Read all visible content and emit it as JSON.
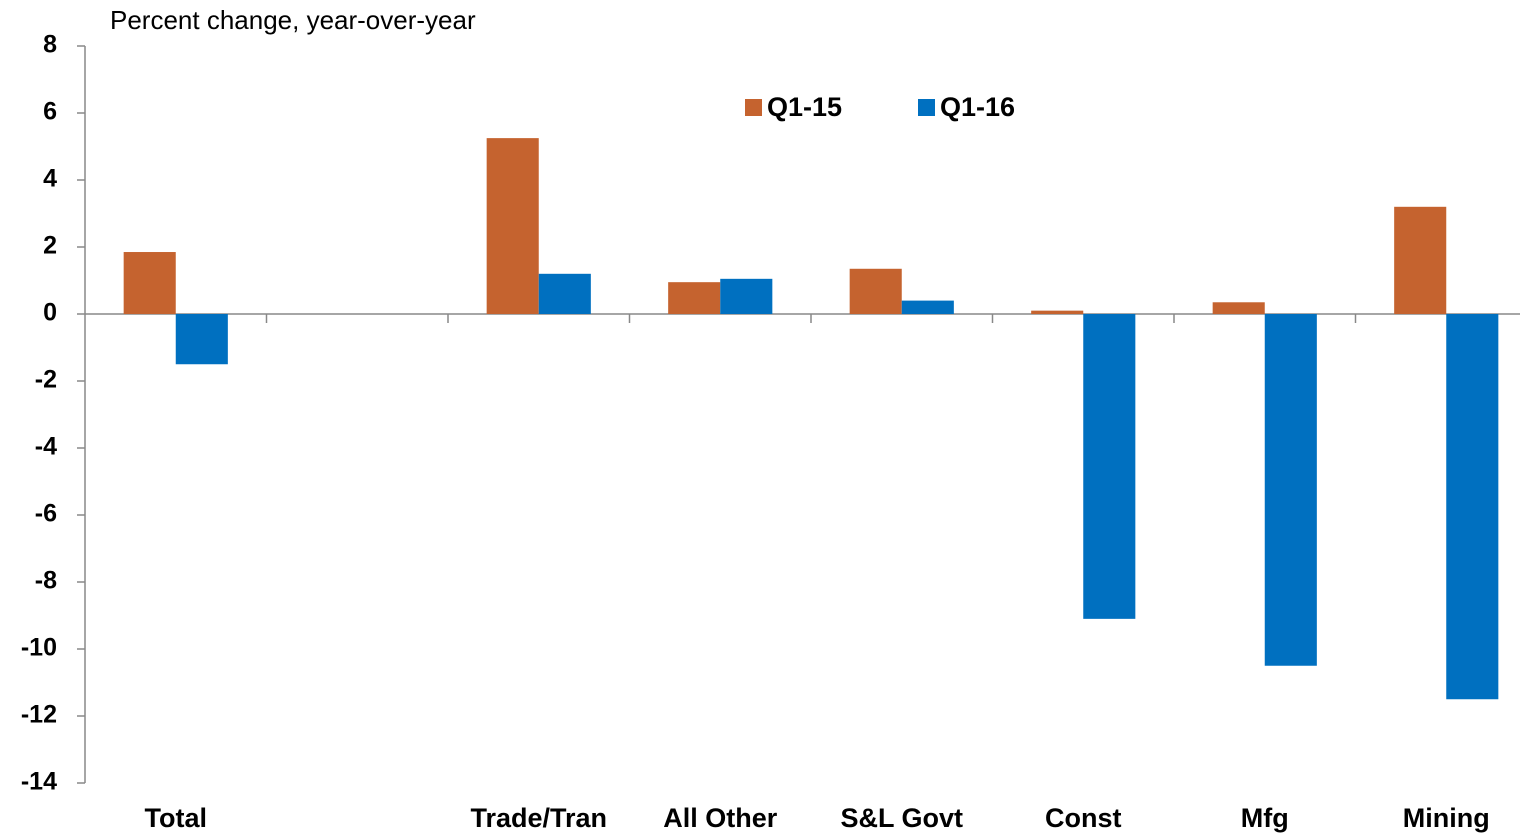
{
  "chart_data": {
    "type": "bar",
    "y_axis_label": "Percent change, year-over-year",
    "categories": [
      "Total",
      null,
      "Trade/Tran",
      "All Other",
      "S&L Govt",
      "Const",
      "Mfg",
      "Mining"
    ],
    "series": [
      {
        "name": "Q1-15",
        "color": "#c5632f",
        "values": [
          1.85,
          null,
          5.25,
          0.95,
          1.35,
          0.1,
          0.35,
          3.2
        ]
      },
      {
        "name": "Q1-16",
        "color": "#0070c0",
        "values": [
          -1.5,
          null,
          1.2,
          1.05,
          0.4,
          -9.1,
          -10.5,
          -11.5
        ]
      }
    ],
    "ylim": [
      -14,
      8
    ],
    "yticks": [
      -14,
      -12,
      -10,
      -8,
      -6,
      -4,
      -2,
      0,
      2,
      4,
      6,
      8
    ],
    "grid": false,
    "legend": "top"
  }
}
